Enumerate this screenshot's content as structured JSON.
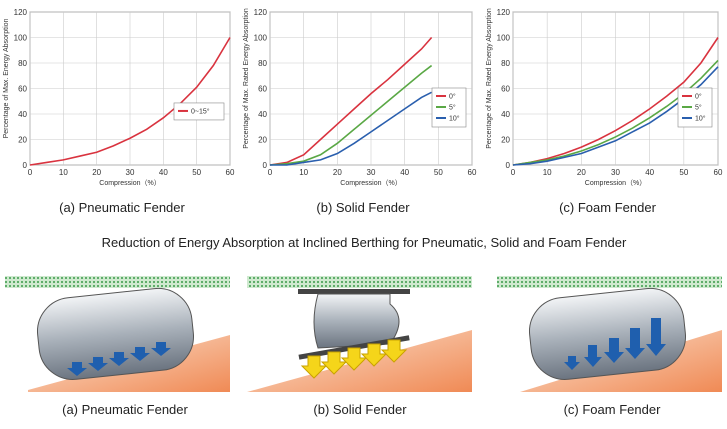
{
  "chart_data": [
    {
      "type": "line",
      "caption": "(a) Pneumatic Fender",
      "xlabel": "Compression（%）",
      "ylabel": "Percentage of Max. Energy Absorption",
      "x": [
        0,
        5,
        10,
        15,
        20,
        25,
        30,
        35,
        40,
        45,
        50,
        55,
        60
      ],
      "series": [
        {
          "name": "0~15°",
          "color": "#d9333f",
          "values": [
            0,
            2,
            4,
            7,
            10,
            15,
            21,
            28,
            37,
            48,
            61,
            78,
            100
          ]
        }
      ],
      "xlim": [
        0,
        60
      ],
      "xticks": [
        0,
        10,
        20,
        30,
        40,
        50,
        60
      ],
      "ylim": [
        0,
        120
      ],
      "yticks": [
        0,
        20,
        40,
        60,
        80,
        100,
        120
      ],
      "grid": true,
      "legend": "right"
    },
    {
      "type": "line",
      "caption": "(b) Solid Fender",
      "xlabel": "Compression（%）",
      "ylabel": "Percentage of Max. Rated Energy Absorption",
      "x": [
        0,
        5,
        10,
        15,
        20,
        25,
        30,
        35,
        40,
        45,
        48
      ],
      "series": [
        {
          "name": "0°",
          "color": "#d9333f",
          "values": [
            0,
            2,
            8,
            20,
            32,
            44,
            56,
            67,
            79,
            91,
            100
          ]
        },
        {
          "name": "5°",
          "color": "#5aa845",
          "values": [
            0,
            1,
            3,
            8,
            17,
            28,
            39,
            50,
            61,
            72,
            78
          ]
        },
        {
          "name": "10°",
          "color": "#2a5fae",
          "values": [
            0,
            0,
            2,
            4,
            9,
            17,
            26,
            35,
            44,
            53,
            57
          ]
        }
      ],
      "xlim": [
        0,
        60
      ],
      "xticks": [
        0,
        10,
        20,
        30,
        40,
        50,
        60
      ],
      "ylim": [
        0,
        120
      ],
      "yticks": [
        0,
        20,
        40,
        60,
        80,
        100,
        120
      ],
      "grid": true,
      "legend": "lower right"
    },
    {
      "type": "line",
      "caption": "(c) Foam Fender",
      "xlabel": "Compression（%）",
      "ylabel": "Percentage of Max. Rated Energy Absorption",
      "x": [
        0,
        5,
        10,
        15,
        20,
        25,
        30,
        35,
        40,
        45,
        50,
        55,
        60
      ],
      "series": [
        {
          "name": "0°",
          "color": "#d9333f",
          "values": [
            0,
            2,
            5,
            9,
            14,
            20,
            27,
            35,
            44,
            54,
            65,
            80,
            100
          ]
        },
        {
          "name": "5°",
          "color": "#5aa845",
          "values": [
            0,
            2,
            4,
            7,
            11,
            16,
            22,
            29,
            37,
            46,
            56,
            68,
            82
          ]
        },
        {
          "name": "10°",
          "color": "#2a5fae",
          "values": [
            0,
            1,
            3,
            6,
            9,
            14,
            19,
            26,
            33,
            42,
            52,
            63,
            77
          ]
        }
      ],
      "xlim": [
        0,
        60
      ],
      "xticks": [
        0,
        10,
        20,
        30,
        40,
        50,
        60
      ],
      "ylim": [
        0,
        120
      ],
      "yticks": [
        0,
        20,
        40,
        60,
        80,
        100,
        120
      ],
      "grid": true,
      "legend": "lower right"
    }
  ],
  "heading": "Reduction of Energy Absorption at Inclined Berthing for Pneumatic, Solid and Foam Fender",
  "illustrations": [
    "(a) Pneumatic Fender",
    "(b) Solid Fender",
    "(c) Foam Fender"
  ]
}
